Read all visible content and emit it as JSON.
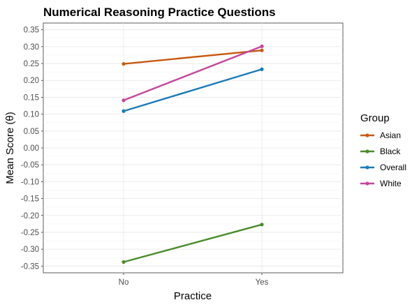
{
  "chart_data": {
    "type": "line",
    "title": "Numerical Reasoning Practice Questions",
    "xlabel": "Practice",
    "ylabel": "Mean Score (θ)",
    "categories": [
      "No",
      "Yes"
    ],
    "ylim": [
      -0.37,
      0.37
    ],
    "yticks": [
      0.35,
      0.3,
      0.25,
      0.2,
      0.15,
      0.1,
      0.05,
      0.0,
      -0.05,
      -0.1,
      -0.15,
      -0.2,
      -0.25,
      -0.3,
      -0.35
    ],
    "ytick_labels": [
      "0.35",
      "0.30",
      "0.25",
      "0.20",
      "0.15",
      "0.10",
      "0.05",
      "0.00",
      "-0.05",
      "-0.10",
      "-0.15",
      "-0.20",
      "-0.25",
      "-0.30",
      "-0.35"
    ],
    "grid": true,
    "legend": {
      "title": "Group",
      "position": "right"
    },
    "series": [
      {
        "name": "Asian",
        "color": "#c55a11",
        "values": [
          0.249,
          0.289
        ]
      },
      {
        "name": "Black",
        "color": "#4a8c2a",
        "values": [
          -0.338,
          -0.227
        ]
      },
      {
        "name": "Overall",
        "color": "#1b7ab6",
        "values": [
          0.109,
          0.233
        ]
      },
      {
        "name": "White",
        "color": "#c4479b",
        "values": [
          0.141,
          0.301
        ]
      }
    ]
  }
}
